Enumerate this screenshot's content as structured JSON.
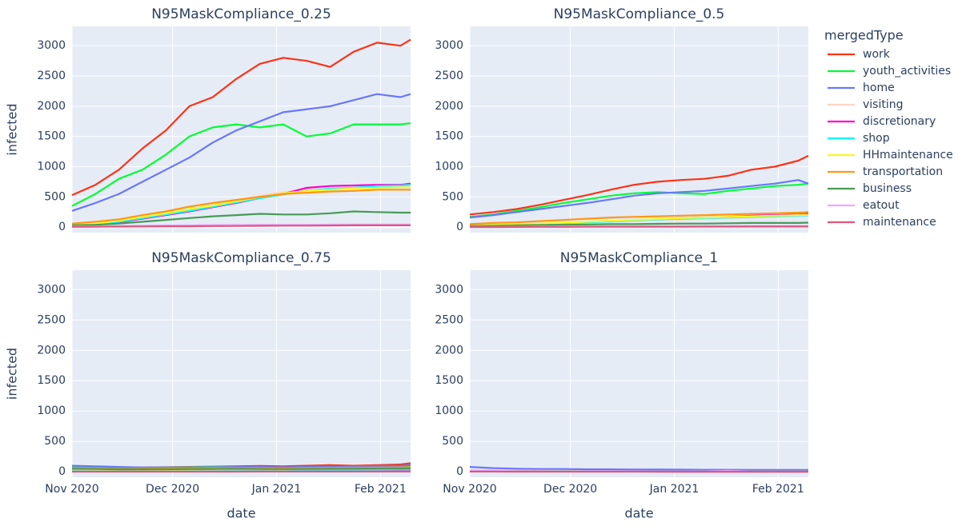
{
  "chart_data": [
    {
      "type": "line",
      "title": "N95MaskCompliance_0.25",
      "ylabel": "infected",
      "legend_title": "mergedType",
      "x": [
        0,
        7,
        14,
        21,
        28,
        35,
        42,
        49,
        56,
        63,
        70,
        77,
        84,
        91,
        98,
        101
      ],
      "xlim": [
        0,
        101
      ],
      "xticks": [
        0,
        30,
        61,
        92
      ],
      "ylim": [
        -90,
        3320
      ],
      "yticks": [
        0,
        500,
        1000,
        1500,
        2000,
        2500,
        3000
      ],
      "series": [
        {
          "name": "work",
          "color": "#FD3216",
          "values": [
            530,
            700,
            950,
            1300,
            1600,
            2000,
            2150,
            2450,
            2700,
            2800,
            2750,
            2650,
            2900,
            3050,
            3000,
            3100
          ]
        },
        {
          "name": "youth_activities",
          "color": "#00FE35",
          "values": [
            350,
            550,
            800,
            950,
            1200,
            1500,
            1650,
            1700,
            1650,
            1700,
            1500,
            1550,
            1700,
            1700,
            1700,
            1720
          ]
        },
        {
          "name": "home",
          "color": "#6A76FC",
          "values": [
            270,
            400,
            550,
            750,
            950,
            1150,
            1400,
            1600,
            1750,
            1900,
            1950,
            2000,
            2100,
            2200,
            2150,
            2200
          ]
        },
        {
          "name": "visiting",
          "color": "#FED4C4",
          "values": [
            30,
            60,
            100,
            170,
            240,
            300,
            370,
            450,
            520,
            580,
            620,
            640,
            650,
            660,
            660,
            670
          ]
        },
        {
          "name": "discretionary",
          "color": "#FE00CE",
          "values": [
            20,
            50,
            80,
            140,
            200,
            260,
            330,
            400,
            480,
            550,
            650,
            680,
            690,
            700,
            700,
            720
          ]
        },
        {
          "name": "shop",
          "color": "#0DF9FF",
          "values": [
            20,
            50,
            90,
            150,
            210,
            270,
            340,
            410,
            480,
            540,
            600,
            640,
            650,
            680,
            690,
            700
          ]
        },
        {
          "name": "HHmaintenance",
          "color": "#F6F926",
          "values": [
            30,
            60,
            110,
            170,
            230,
            300,
            360,
            430,
            500,
            560,
            600,
            620,
            640,
            650,
            660,
            660
          ]
        },
        {
          "name": "transportation",
          "color": "#FF9616",
          "values": [
            60,
            90,
            130,
            200,
            260,
            340,
            400,
            450,
            500,
            550,
            570,
            590,
            600,
            620,
            620,
            620
          ]
        },
        {
          "name": "business",
          "color": "#479B55",
          "values": [
            30,
            40,
            60,
            90,
            120,
            150,
            180,
            200,
            220,
            210,
            210,
            230,
            260,
            250,
            240,
            240
          ]
        },
        {
          "name": "eatout",
          "color": "#EEA6FB",
          "values": [
            10,
            15,
            20,
            25,
            30,
            30,
            35,
            35,
            40,
            40,
            40,
            45,
            45,
            45,
            45,
            45
          ]
        },
        {
          "name": "maintenance",
          "color": "#DC587D",
          "values": [
            5,
            8,
            10,
            12,
            15,
            15,
            18,
            20,
            22,
            25,
            25,
            28,
            30,
            30,
            30,
            30
          ]
        }
      ]
    },
    {
      "type": "line",
      "title": "N95MaskCompliance_0.5",
      "x": [
        0,
        7,
        14,
        21,
        28,
        35,
        42,
        49,
        56,
        63,
        70,
        77,
        84,
        91,
        98,
        101
      ],
      "xlim": [
        0,
        101
      ],
      "xticks": [
        0,
        30,
        61,
        92
      ],
      "ylim": [
        -90,
        3320
      ],
      "yticks": [
        0,
        500,
        1000,
        1500,
        2000,
        2500,
        3000
      ],
      "series": [
        {
          "values": [
            210,
            250,
            300,
            370,
            450,
            530,
            620,
            700,
            750,
            780,
            800,
            850,
            950,
            1000,
            1100,
            1180
          ]
        },
        {
          "values": [
            170,
            210,
            270,
            330,
            400,
            460,
            520,
            560,
            580,
            560,
            550,
            600,
            640,
            680,
            700,
            720
          ]
        },
        {
          "values": [
            160,
            200,
            250,
            300,
            350,
            400,
            460,
            520,
            560,
            580,
            600,
            640,
            680,
            720,
            780,
            720
          ]
        },
        {
          "values": [
            30,
            40,
            50,
            60,
            70,
            80,
            100,
            110,
            120,
            130,
            140,
            150,
            160,
            180,
            190,
            200
          ]
        },
        {
          "values": [
            20,
            30,
            40,
            55,
            70,
            85,
            100,
            115,
            130,
            150,
            160,
            170,
            190,
            200,
            210,
            220
          ]
        },
        {
          "values": [
            20,
            30,
            40,
            55,
            70,
            80,
            95,
            110,
            125,
            140,
            150,
            160,
            170,
            180,
            190,
            195
          ]
        },
        {
          "values": [
            30,
            40,
            50,
            60,
            75,
            90,
            105,
            120,
            135,
            150,
            160,
            170,
            180,
            190,
            200,
            205
          ]
        },
        {
          "values": [
            50,
            70,
            80,
            100,
            120,
            140,
            160,
            170,
            180,
            190,
            200,
            210,
            220,
            230,
            240,
            250
          ]
        },
        {
          "values": [
            20,
            25,
            30,
            35,
            40,
            45,
            50,
            50,
            55,
            60,
            60,
            65,
            70,
            70,
            70,
            75
          ]
        },
        {
          "values": [
            5,
            6,
            8,
            10,
            12,
            13,
            14,
            15,
            16,
            17,
            18,
            18,
            20,
            20,
            20,
            20
          ]
        },
        {
          "values": [
            2,
            3,
            4,
            5,
            5,
            6,
            6,
            7,
            8,
            8,
            9,
            9,
            10,
            10,
            10,
            10
          ]
        }
      ]
    },
    {
      "type": "line",
      "title": "N95MaskCompliance_0.75",
      "ylabel": "infected",
      "xlabel": "date",
      "x": [
        0,
        7,
        14,
        21,
        28,
        35,
        42,
        49,
        56,
        63,
        70,
        77,
        84,
        91,
        98,
        101
      ],
      "xlim": [
        0,
        101
      ],
      "xticks": [
        {
          "value": 0,
          "label": "Nov 2020"
        },
        {
          "value": 30,
          "label": "Dec 2020"
        },
        {
          "value": 61,
          "label": "Jan 2021"
        },
        {
          "value": 92,
          "label": "Feb 2021"
        }
      ],
      "ylim": [
        -90,
        3320
      ],
      "yticks": [
        0,
        500,
        1000,
        1500,
        2000,
        2500,
        3000
      ],
      "series": [
        {
          "values": [
            90,
            80,
            70,
            70,
            75,
            80,
            85,
            90,
            95,
            90,
            100,
            110,
            100,
            110,
            120,
            140
          ]
        },
        {
          "values": [
            80,
            70,
            60,
            65,
            70,
            75,
            80,
            80,
            75,
            70,
            80,
            85,
            85,
            90,
            95,
            100
          ]
        },
        {
          "values": [
            100,
            90,
            80,
            70,
            70,
            70,
            75,
            80,
            80,
            75,
            80,
            85,
            90,
            95,
            100,
            110
          ]
        },
        {
          "values": [
            30,
            30,
            25,
            25,
            30,
            30,
            30,
            35,
            35,
            35,
            35,
            40,
            40,
            40,
            45,
            45
          ]
        },
        {
          "values": [
            20,
            20,
            20,
            20,
            22,
            22,
            25,
            25,
            25,
            25,
            28,
            28,
            30,
            30,
            30,
            30
          ]
        },
        {
          "values": [
            30,
            28,
            26,
            25,
            26,
            28,
            30,
            30,
            32,
            30,
            32,
            35,
            36,
            38,
            40,
            40
          ]
        },
        {
          "values": [
            40,
            38,
            36,
            35,
            36,
            38,
            40,
            42,
            42,
            40,
            44,
            46,
            48,
            50,
            52,
            55
          ]
        },
        {
          "values": [
            60,
            55,
            50,
            50,
            55,
            58,
            60,
            62,
            60,
            58,
            62,
            65,
            68,
            70,
            72,
            75
          ]
        },
        {
          "values": [
            50,
            45,
            40,
            40,
            42,
            44,
            46,
            48,
            46,
            44,
            46,
            48,
            50,
            52,
            54,
            55
          ]
        },
        {
          "values": [
            5,
            5,
            5,
            5,
            5,
            5,
            6,
            6,
            6,
            6,
            6,
            7,
            7,
            7,
            7,
            7
          ]
        },
        {
          "values": [
            2,
            2,
            2,
            2,
            2,
            2,
            2,
            2,
            3,
            3,
            3,
            3,
            3,
            3,
            3,
            3
          ]
        }
      ]
    },
    {
      "type": "line",
      "title": "N95MaskCompliance_1",
      "xlabel": "date",
      "x": [
        0,
        7,
        14,
        21,
        28,
        35,
        42,
        49,
        56,
        63,
        70,
        77,
        84,
        91,
        98,
        101
      ],
      "xlim": [
        0,
        101
      ],
      "xticks": [
        {
          "value": 0,
          "label": "Nov 2020"
        },
        {
          "value": 30,
          "label": "Dec 2020"
        },
        {
          "value": 61,
          "label": "Jan 2021"
        },
        {
          "value": 92,
          "label": "Feb 2021"
        }
      ],
      "ylim": [
        -90,
        3320
      ],
      "yticks": [
        0,
        500,
        1000,
        1500,
        2000,
        2500,
        3000
      ],
      "series": [
        {
          "values": [
            5,
            5,
            5,
            4,
            4,
            4,
            4,
            3,
            3,
            3,
            3,
            3,
            3,
            3,
            3,
            3
          ]
        },
        {
          "values": [
            20,
            15,
            12,
            10,
            10,
            8,
            8,
            7,
            6,
            6,
            6,
            5,
            5,
            5,
            5,
            5
          ]
        },
        {
          "values": [
            80,
            60,
            50,
            45,
            45,
            40,
            40,
            38,
            36,
            35,
            33,
            32,
            30,
            30,
            30,
            30
          ]
        },
        {
          "values": [
            10,
            8,
            6,
            5,
            5,
            4,
            4,
            4,
            3,
            3,
            3,
            3,
            3,
            3,
            3,
            3
          ]
        },
        {
          "values": [
            8,
            6,
            5,
            4,
            4,
            3,
            3,
            3,
            3,
            2,
            2,
            2,
            2,
            2,
            2,
            2
          ]
        },
        {
          "values": [
            10,
            8,
            7,
            6,
            5,
            5,
            4,
            4,
            4,
            3,
            3,
            3,
            3,
            3,
            3,
            3
          ]
        },
        {
          "values": [
            12,
            10,
            8,
            7,
            6,
            5,
            5,
            5,
            4,
            4,
            4,
            4,
            3,
            3,
            3,
            3
          ]
        },
        {
          "values": [
            15,
            12,
            10,
            9,
            8,
            7,
            6,
            6,
            5,
            5,
            5,
            4,
            4,
            4,
            4,
            4
          ]
        },
        {
          "values": [
            10,
            8,
            7,
            6,
            5,
            5,
            4,
            4,
            4,
            3,
            3,
            3,
            3,
            3,
            3,
            3
          ]
        },
        {
          "values": [
            20,
            15,
            12,
            10,
            9,
            8,
            7,
            7,
            6,
            6,
            6,
            15,
            5,
            5,
            5,
            5
          ]
        },
        {
          "values": [
            3,
            3,
            2,
            2,
            2,
            2,
            2,
            2,
            1,
            1,
            1,
            1,
            1,
            1,
            1,
            1
          ]
        }
      ]
    }
  ]
}
